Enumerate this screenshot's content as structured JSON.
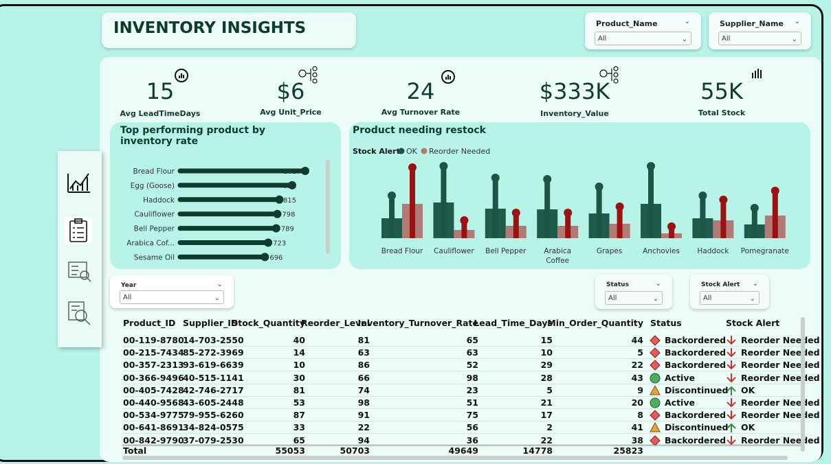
{
  "header": {
    "title": "INVENTORY INSIGHTS"
  },
  "filters": [
    {
      "label": "Product_Name",
      "value": "All"
    },
    {
      "label": "Supplier_Name",
      "value": "All"
    },
    {
      "label": "Year",
      "value": "All"
    },
    {
      "label": "Status",
      "value": "All"
    },
    {
      "label": "Stock Alert",
      "value": "All"
    }
  ],
  "kpis": [
    {
      "value": "15",
      "label": "Avg LeadTimeDays"
    },
    {
      "value": "$6",
      "label": "Avg Unit_Price"
    },
    {
      "value": "24",
      "label": "Avg Turnover Rate"
    },
    {
      "value": "$333K",
      "label": "Inventory_Value"
    },
    {
      "value": "55K",
      "label": "Total Stock"
    }
  ],
  "chart_data": [
    {
      "type": "lollipop",
      "title": "Top performing product by inventory rate",
      "categories": [
        "Bread Flour",
        "Egg (Goose)",
        "Haddock",
        "Cauliflower",
        "Bell Pepper",
        "Arabica Cof...",
        "Sesame Oil"
      ],
      "values": [
        1027,
        920,
        815,
        798,
        789,
        723,
        696
      ],
      "color": "#0d3b2e"
    },
    {
      "type": "bar-lollipop",
      "title": "Product needing restock",
      "legend_title": "Stock Alert",
      "categories": [
        "Bread Flour",
        "Cauliflower",
        "Bell Pepper",
        "Arabica Coffee",
        "Grapes",
        "Anchovies",
        "Haddock",
        "Pomegranate"
      ],
      "series": [
        {
          "name": "OK",
          "color": "#1d5445",
          "bar_color": "#1f5a4a",
          "values": [
            29,
            52,
            43,
            42,
            36,
            50,
            29,
            20
          ],
          "marker_values": [
            62,
            105,
            88,
            86,
            75,
            105,
            62,
            44
          ]
        },
        {
          "name": "Reorder Needed",
          "color": "#9b1212",
          "bar_color": "#b27a74",
          "values": [
            50,
            12,
            18,
            18,
            21,
            7,
            26,
            33
          ],
          "marker_values": [
            103,
            26,
            37,
            37,
            46,
            17,
            56,
            69
          ]
        }
      ]
    }
  ],
  "table": {
    "columns": [
      "Product_ID",
      "Supplier_ID",
      "Stock_Quantity",
      "Reorder_Level",
      "Inventory_Turnover_Rate",
      "Lead_Time_Days",
      "Min_Order_Quantity",
      "Status",
      "Stock Alert"
    ],
    "rows": [
      [
        "00-119-8780",
        "14-703-2550",
        40,
        81,
        65,
        15,
        44,
        "Backordered",
        "Reorder Needed"
      ],
      [
        "00-215-7434",
        "85-272-3969",
        14,
        63,
        63,
        10,
        5,
        "Backordered",
        "Reorder Needed"
      ],
      [
        "00-357-2313",
        "93-619-6639",
        10,
        86,
        52,
        29,
        22,
        "Backordered",
        "Reorder Needed"
      ],
      [
        "00-366-9496",
        "40-515-1141",
        30,
        66,
        98,
        28,
        43,
        "Active",
        "Reorder Needed"
      ],
      [
        "00-405-7428",
        "42-746-2717",
        81,
        74,
        23,
        5,
        9,
        "Discontinued",
        "OK"
      ],
      [
        "00-440-9568",
        "43-605-2448",
        53,
        98,
        51,
        21,
        20,
        "Active",
        "Reorder Needed"
      ],
      [
        "00-534-9775",
        "79-955-6260",
        87,
        91,
        75,
        17,
        8,
        "Backordered",
        "Reorder Needed"
      ],
      [
        "00-641-8691",
        "34-824-0575",
        33,
        22,
        56,
        2,
        41,
        "Discontinued",
        "OK"
      ],
      [
        "00-842-9790",
        "37-079-2530",
        65,
        94,
        36,
        22,
        38,
        "Backordered",
        "Reorder Needed"
      ]
    ],
    "total": [
      "Total",
      null,
      55053,
      50703,
      49649,
      14778,
      25823,
      null,
      null
    ]
  }
}
